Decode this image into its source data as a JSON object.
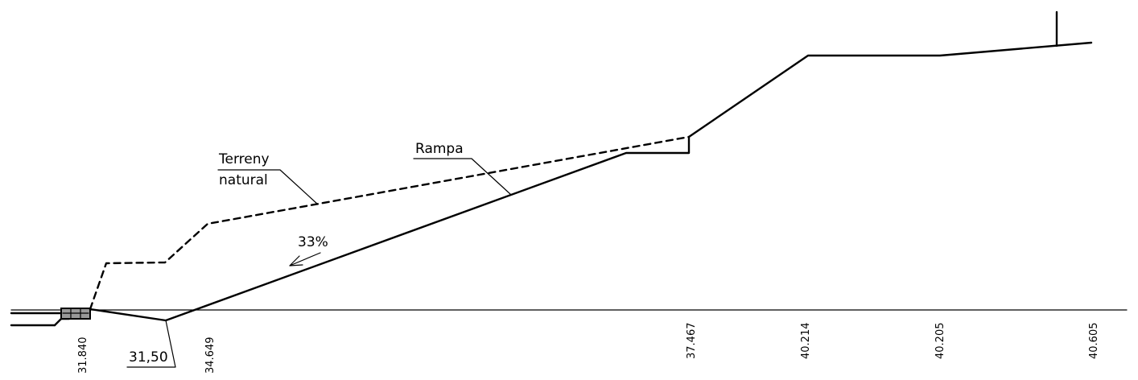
{
  "labels": {
    "terrain_line1": "Terreny",
    "terrain_line2": "natural",
    "ramp": "Rampa",
    "slope": "33%",
    "bottom_level": "31,50"
  },
  "elevations": [
    "31.840",
    "34.649",
    "37.467",
    "40.214",
    "40.205",
    "40.605"
  ],
  "colors": {
    "line": "#000000",
    "background": "#ffffff",
    "curb_fill": "#999999"
  }
}
